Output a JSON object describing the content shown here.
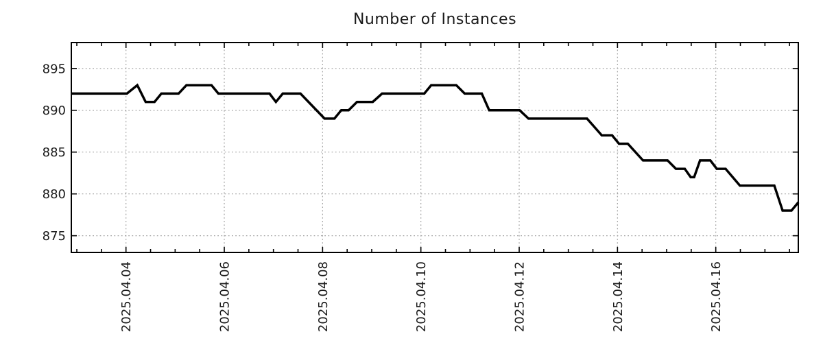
{
  "chart_data": {
    "type": "line",
    "title": "Number of Instances",
    "xlabel": "",
    "ylabel": "",
    "x_unit": "day of April 2025 (fractional)",
    "legend": "none",
    "grid": {
      "visible": true,
      "style": "dotted",
      "color": "#a0a0a0"
    },
    "background_color": "#ffffff",
    "border_color": "#000000",
    "text_color": "#1a1a1a",
    "x_axis": {
      "range": [
        2.888,
        17.679
      ],
      "major_tick_step_days": 2,
      "minor_tick_step_days": 0.5,
      "tick_labels": [
        {
          "value": 4,
          "label": "2025.04.04"
        },
        {
          "value": 6,
          "label": "2025.04.06"
        },
        {
          "value": 8,
          "label": "2025.04.08"
        },
        {
          "value": 10,
          "label": "2025.04.10"
        },
        {
          "value": 12,
          "label": "2025.04.12"
        },
        {
          "value": 14,
          "label": "2025.04.14"
        },
        {
          "value": 16,
          "label": "2025.04.16"
        }
      ],
      "label_rotation_deg": -90
    },
    "y_axis": {
      "range": [
        873.0,
        898.1
      ],
      "ticks": [
        875,
        880,
        885,
        890,
        895
      ]
    },
    "series": [
      {
        "name": "instances",
        "color": "#000000",
        "line_width": 3.5,
        "points": [
          [
            2.89,
            892
          ],
          [
            4.02,
            892
          ],
          [
            4.23,
            893
          ],
          [
            4.4,
            891
          ],
          [
            4.58,
            891
          ],
          [
            4.72,
            892
          ],
          [
            5.07,
            892
          ],
          [
            5.23,
            893
          ],
          [
            5.74,
            893
          ],
          [
            5.88,
            892
          ],
          [
            6.92,
            892
          ],
          [
            7.05,
            891
          ],
          [
            7.19,
            892
          ],
          [
            7.55,
            892
          ],
          [
            8.04,
            889
          ],
          [
            8.24,
            889
          ],
          [
            8.38,
            890
          ],
          [
            8.53,
            890
          ],
          [
            8.7,
            891
          ],
          [
            9.02,
            891
          ],
          [
            9.21,
            892
          ],
          [
            10.07,
            892
          ],
          [
            10.21,
            893
          ],
          [
            10.72,
            893
          ],
          [
            10.89,
            892
          ],
          [
            11.24,
            892
          ],
          [
            11.39,
            890
          ],
          [
            12.01,
            890
          ],
          [
            12.19,
            889
          ],
          [
            13.38,
            889
          ],
          [
            13.68,
            887
          ],
          [
            13.89,
            887
          ],
          [
            14.03,
            886
          ],
          [
            14.21,
            886
          ],
          [
            14.52,
            884
          ],
          [
            15.02,
            884
          ],
          [
            15.19,
            883
          ],
          [
            15.37,
            883
          ],
          [
            15.49,
            882
          ],
          [
            15.56,
            882
          ],
          [
            15.68,
            884
          ],
          [
            15.89,
            884
          ],
          [
            16.02,
            883
          ],
          [
            16.2,
            883
          ],
          [
            16.49,
            881
          ],
          [
            17.19,
            881
          ],
          [
            17.36,
            878
          ],
          [
            17.54,
            878
          ],
          [
            17.68,
            879
          ]
        ]
      }
    ]
  }
}
